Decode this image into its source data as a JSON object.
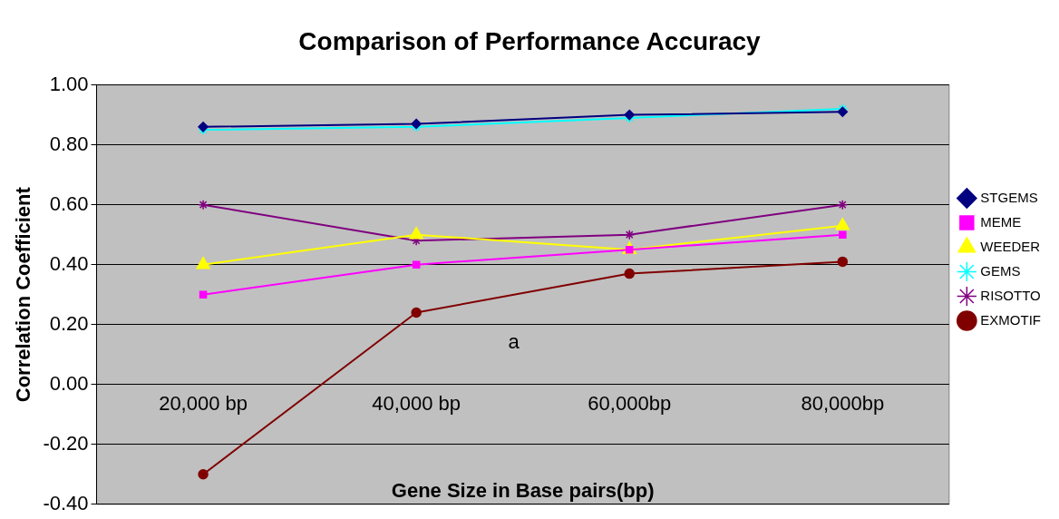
{
  "chart_data": {
    "type": "line",
    "title": "Comparison of Performance Accuracy",
    "xlabel": "Gene Size in Base pairs(bp)",
    "ylabel": "Correlation Coefficient",
    "categories": [
      "20,000 bp",
      "40,000 bp",
      "60,000bp",
      "80,000bp"
    ],
    "series": [
      {
        "name": "STGEMS",
        "color": "#000080",
        "marker": "diamond",
        "values": [
          0.86,
          0.87,
          0.9,
          0.91
        ]
      },
      {
        "name": "MEME",
        "color": "#ff00ff",
        "marker": "square",
        "values": [
          0.3,
          0.4,
          0.45,
          0.5
        ]
      },
      {
        "name": "WEEDER",
        "color": "#ffff00",
        "marker": "triangle",
        "values": [
          0.4,
          0.5,
          0.45,
          0.53
        ]
      },
      {
        "name": "GEMS",
        "color": "#00ffff",
        "marker": "cross",
        "values": [
          0.85,
          0.86,
          0.89,
          0.92
        ]
      },
      {
        "name": "RISOTTO",
        "color": "#800080",
        "marker": "cross",
        "values": [
          0.6,
          0.48,
          0.5,
          0.6
        ]
      },
      {
        "name": "EXMOTIF",
        "color": "#800000",
        "marker": "circle",
        "values": [
          -0.3,
          0.24,
          0.37,
          0.41
        ]
      }
    ],
    "ylim": [
      -0.4,
      1.0
    ],
    "yticks": [
      {
        "value": -0.4,
        "label": "-0.40"
      },
      {
        "value": -0.2,
        "label": "-0.20"
      },
      {
        "value": 0,
        "label": "0.00"
      },
      {
        "value": 0.2,
        "label": "0.20"
      },
      {
        "value": 0.4,
        "label": "0.40"
      },
      {
        "value": 0.6,
        "label": "0.60"
      },
      {
        "value": 0.8,
        "label": "0.80"
      },
      {
        "value": 1.0,
        "label": "1.00"
      }
    ],
    "grid": "y",
    "legend": "right",
    "annotations": [
      "a"
    ]
  }
}
